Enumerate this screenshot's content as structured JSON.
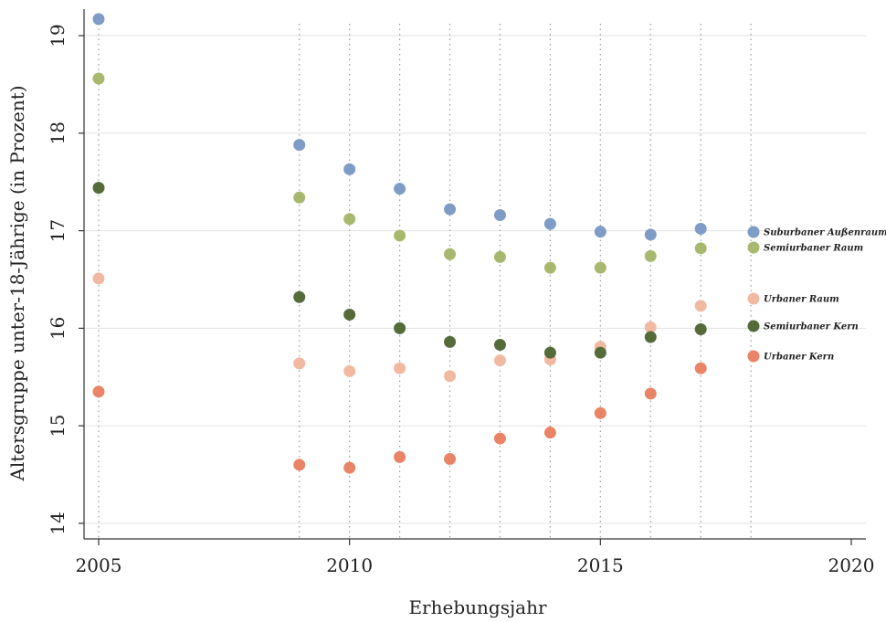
{
  "chart_data": {
    "type": "scatter",
    "title": "",
    "xlabel": "Erhebungsjahr",
    "ylabel": "Altersgruppe unter-18-Jährige (in Prozent)",
    "xlim": [
      2005,
      2020
    ],
    "ylim": [
      14,
      19.2
    ],
    "xticks": [
      2005,
      2010,
      2015,
      2020
    ],
    "yticks": [
      14,
      15,
      16,
      17,
      18,
      19
    ],
    "grid": true,
    "vertical_reference_years": [
      2005,
      2009,
      2010,
      2011,
      2012,
      2013,
      2014,
      2015,
      2016,
      2017,
      2018
    ],
    "legend_position": "right",
    "x": [
      2005,
      2009,
      2010,
      2011,
      2012,
      2013,
      2014,
      2015,
      2016,
      2017
    ],
    "series": [
      {
        "name": "Suburbaner Außenraum",
        "color": "#7e9cc6",
        "values": [
          19.17,
          17.88,
          17.63,
          17.43,
          17.22,
          17.16,
          17.07,
          16.99,
          16.96,
          17.02
        ]
      },
      {
        "name": "Semiurbaner Raum",
        "color": "#a8b96f",
        "values": [
          18.56,
          17.34,
          17.12,
          16.95,
          16.76,
          16.73,
          16.62,
          16.62,
          16.74,
          16.82
        ]
      },
      {
        "name": "Urbaner Raum",
        "color": "#f2b9a2",
        "values": [
          16.51,
          15.64,
          15.56,
          15.59,
          15.51,
          15.67,
          15.68,
          15.81,
          16.01,
          16.23
        ]
      },
      {
        "name": "Semiurbaner Kern",
        "color": "#556b3a",
        "values": [
          17.44,
          16.32,
          16.14,
          16.0,
          15.86,
          15.83,
          15.75,
          15.75,
          15.91,
          15.99
        ]
      },
      {
        "name": "Urbaner Kern",
        "color": "#ea8467",
        "values": [
          15.35,
          14.6,
          14.57,
          14.68,
          14.66,
          14.87,
          14.93,
          15.13,
          15.33,
          15.59
        ]
      }
    ]
  }
}
